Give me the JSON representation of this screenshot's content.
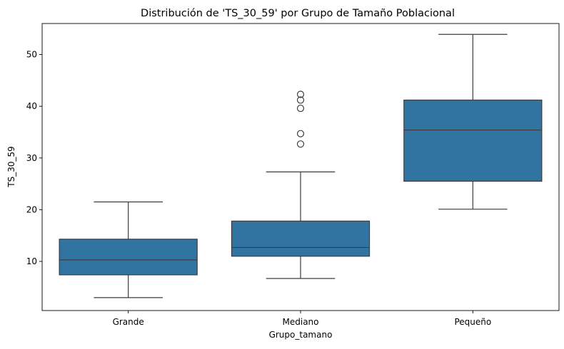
{
  "chart_data": {
    "type": "boxplot",
    "title": "Distribución de 'TS_30_59' por Grupo de Tamaño Poblacional",
    "xlabel": "Grupo_tamano",
    "ylabel": "TS_30_59",
    "ylim": [
      0.5,
      56
    ],
    "yticks": [
      10,
      20,
      30,
      40,
      50
    ],
    "grid": false,
    "legend": "none",
    "box_color": "#3274a1",
    "line_color": "#3d3d3d",
    "categories": [
      "Grande",
      "Mediano",
      "Pequeño"
    ],
    "boxes": [
      {
        "category": "Grande",
        "whisker_low": 3.0,
        "q1": 7.4,
        "median": 10.3,
        "q3": 14.3,
        "whisker_high": 21.5,
        "outliers": []
      },
      {
        "category": "Mediano",
        "whisker_low": 6.7,
        "q1": 11.0,
        "median": 12.7,
        "q3": 17.8,
        "whisker_high": 27.3,
        "outliers": [
          32.7,
          34.7,
          39.6,
          41.2,
          42.3
        ]
      },
      {
        "category": "Pequeño",
        "whisker_low": 20.1,
        "q1": 25.5,
        "median": 35.4,
        "q3": 41.2,
        "whisker_high": 53.9,
        "outliers": []
      }
    ]
  }
}
